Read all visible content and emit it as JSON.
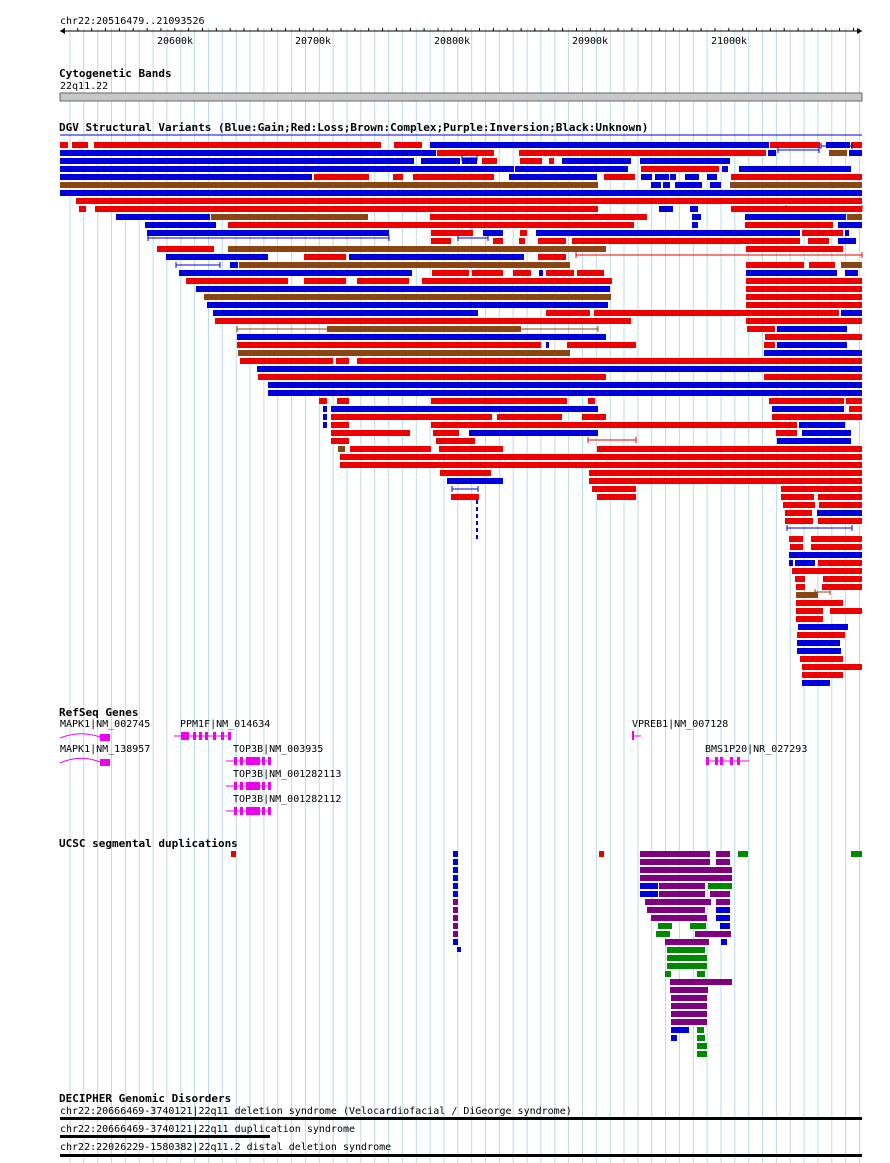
{
  "browser": {
    "coordinate": "chr22:20516479..21093526",
    "ruler_ticks": [
      "20600k",
      "20700k",
      "20800k",
      "20900k",
      "21000k"
    ]
  },
  "tracks": {
    "cytobands": {
      "title": "Cytogenetic Bands",
      "band": "22q11.22"
    },
    "dgv": {
      "title": "DGV Structural Variants (Blue:Gain;Red:Loss;Brown:Complex;Purple:Inversion;Black:Unknown)",
      "colors": {
        "gain": "#0000dd",
        "loss": "#ee0000",
        "complex": "#8b4513",
        "inversion": "#800080",
        "unknown": "#000000"
      }
    },
    "refseq": {
      "title": "RefSeq Genes",
      "color": "#ee00ee",
      "genes": [
        "MAPK1|NM_002745",
        "PPM1F|NM_014634",
        "VPREB1|NM_007128",
        "MAPK1|NM_138957",
        "TOP3B|NM_003935",
        "BMS1P20|NR_027293",
        "TOP3B|NM_001282113",
        "TOP3B|NM_001282112"
      ]
    },
    "segdups": {
      "title": "UCSC segmental duplications",
      "colors": {
        "blue": "#0000dd",
        "purple": "#800080",
        "green": "#008800",
        "red": "#ee0000"
      }
    },
    "decipher": {
      "title": "DECIPHER Genomic Disorders",
      "entries": [
        "chr22:20666469-3740121|22q11 deletion syndrome (Velocardiofacial / DiGeorge syndrome)",
        "chr22:20666469-3740121|22q11 duplication syndrome",
        "chr22:22026229-1580382|22q11.2 distal deletion syndrome"
      ]
    }
  }
}
